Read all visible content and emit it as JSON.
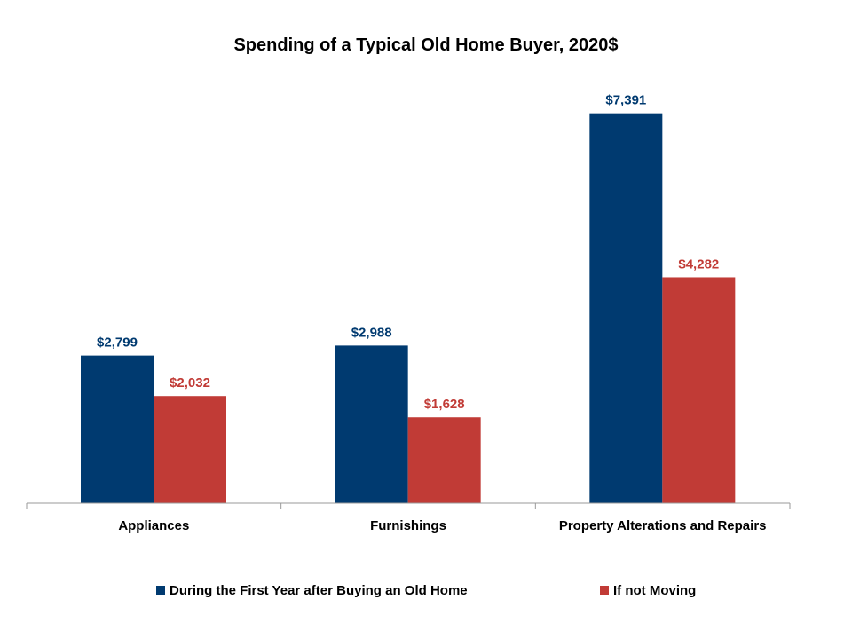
{
  "chart_data": {
    "type": "bar",
    "title": "Spending of a Typical Old Home Buyer, 2020$",
    "xlabel": "",
    "ylabel": "",
    "categories": [
      "Appliances",
      "Furnishings",
      "Property Alterations and Repairs"
    ],
    "series": [
      {
        "name": "During the First Year after Buying an Old Home",
        "color": "#003a70",
        "values": [
          2799,
          2988,
          7391
        ],
        "labels": [
          "$2,799",
          "$2,988",
          "$7,391"
        ]
      },
      {
        "name": "If not Moving",
        "color": "#c13b36",
        "values": [
          2032,
          1628,
          4282
        ],
        "labels": [
          "$2,032",
          "$1,628",
          "$4,282"
        ]
      }
    ],
    "ylim": [
      0,
      8000
    ],
    "grid": false,
    "legend_position": "bottom"
  }
}
